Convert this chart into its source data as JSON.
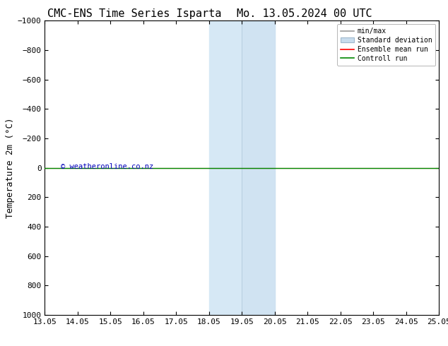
{
  "title_left": "CMC-ENS Time Series Isparta",
  "title_right": "Mo. 13.05.2024 00 UTC",
  "ylabel": "Temperature 2m (°C)",
  "watermark": "© weatheronline.co.nz",
  "ylim_bottom": -1000,
  "ylim_top": 1000,
  "yticks": [
    -1000,
    -800,
    -600,
    -400,
    -200,
    0,
    200,
    400,
    600,
    800,
    1000
  ],
  "xtick_labels": [
    "13.05",
    "14.05",
    "15.05",
    "16.05",
    "17.05",
    "18.05",
    "19.05",
    "20.05",
    "21.05",
    "22.05",
    "23.05",
    "24.05",
    "25.05"
  ],
  "xlim_start": 0,
  "xlim_end": 12,
  "shade_x1": 5,
  "shade_x2": 6,
  "shade_x3": 7,
  "shade_color": "#d6e8f5",
  "shade_mid_color": "#c0d8ec",
  "hline_y": 0,
  "green_color": "#008800",
  "red_color": "#ff0000",
  "gray_color": "#999999",
  "legend_labels": [
    "min/max",
    "Standard deviation",
    "Ensemble mean run",
    "Controll run"
  ],
  "bg_color": "#ffffff",
  "title_fontsize": 11,
  "axis_fontsize": 8,
  "ylabel_fontsize": 9,
  "watermark_color": "#0000bb"
}
